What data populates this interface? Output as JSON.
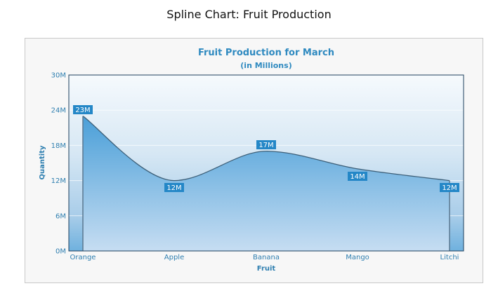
{
  "page": {
    "title": "Spline Chart: Fruit Production"
  },
  "chart": {
    "caption": "Fruit Production for March",
    "subcaption": "(in Millions)",
    "xaxis_name": "Fruit",
    "yaxis_name": "Quantity",
    "y_ticks": [
      "0M",
      "6M",
      "12M",
      "18M",
      "24M",
      "30M"
    ],
    "categories": [
      "Orange",
      "Apple",
      "Banana",
      "Mango",
      "Litchi"
    ],
    "value_labels": [
      "23M",
      "12M",
      "17M",
      "14M",
      "12M"
    ],
    "colors": {
      "caption": "#2f8ac0",
      "area_fill_top": "#4a9fd8",
      "area_fill_bottom": "#c6ddf2",
      "line": "#3d5f78",
      "label_bg": "#2487c7",
      "plot_border": "#1d3f5c"
    }
  },
  "chart_data": {
    "type": "area",
    "subtype": "spline-area",
    "title": "Fruit Production for March",
    "subtitle": "(in Millions)",
    "xlabel": "Fruit",
    "ylabel": "Quantity",
    "categories": [
      "Orange",
      "Apple",
      "Banana",
      "Mango",
      "Litchi"
    ],
    "values": [
      23,
      12,
      17,
      14,
      12
    ],
    "value_labels": [
      "23M",
      "12M",
      "17M",
      "14M",
      "12M"
    ],
    "unit": "M",
    "ylim": [
      0,
      30
    ],
    "y_ticks": [
      0,
      6,
      12,
      18,
      24,
      30
    ],
    "grid": true,
    "legend": "none"
  }
}
